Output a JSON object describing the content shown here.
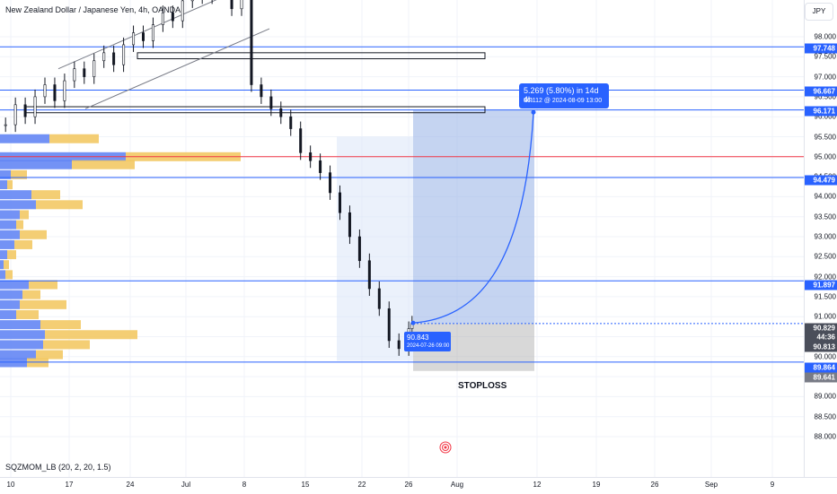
{
  "header": {
    "symbol_title": "New Zealand Dollar / Japanese Yen, 4h, OANDA"
  },
  "currency_button": "JPY",
  "indicator_label": "SQZMOM_LB (20, 2, 20, 1.5)",
  "annotation_stoploss": "STOPLOSS",
  "measure": {
    "line1": "5.269 (5.80%) in 14d 4h",
    "line2": "96.112 @ 2024-08-09  13:00"
  },
  "entry_label": {
    "price": "90.843",
    "date": "2024-07-26 09:00"
  },
  "price_ticks": [
    "98.000",
    "97.500",
    "97.000",
    "96.500",
    "96.000",
    "95.500",
    "95.000",
    "94.500",
    "94.000",
    "93.500",
    "93.000",
    "92.500",
    "92.000",
    "91.500",
    "91.000",
    "90.500",
    "90.000",
    "89.500",
    "89.000",
    "88.500",
    "88.000"
  ],
  "price_tags": {
    "p97748": "97.748",
    "p96667": "96.667",
    "p96171": "96.171",
    "p94479": "94.479",
    "p91897": "91.897",
    "p90829": "90.829",
    "countdown": "44:36",
    "p90813": "90.813",
    "p89864": "89.864",
    "p89641": "89.641"
  },
  "time_ticks": [
    "10",
    "17",
    "24",
    "Jul",
    "8",
    "15",
    "22",
    "26",
    "Aug",
    "12",
    "19",
    "26",
    "Sep",
    "9"
  ],
  "colors": {
    "accent_blue": "#2962ff",
    "red_line": "#f23645",
    "volume_blue": "#5b7ff3",
    "volume_yellow": "#f2c55c",
    "candle": "#131722"
  },
  "chart_data": {
    "type": "candlestick",
    "symbol": "NZDJPY",
    "interval": "4h",
    "x_ticks": [
      "10",
      "17",
      "24",
      "Jul",
      "8",
      "15",
      "22",
      "26",
      "Aug",
      "12",
      "19",
      "26",
      "Sep",
      "9"
    ],
    "y_ticks": [
      98.0,
      97.5,
      97.0,
      96.5,
      96.0,
      95.5,
      95.0,
      94.5,
      94.0,
      93.5,
      93.0,
      92.5,
      92.0,
      91.5,
      91.0,
      90.5,
      90.0,
      89.5,
      89.0,
      88.5,
      88.0
    ],
    "y_range": [
      87.6,
      99.8
    ],
    "close_path": [
      [
        0,
        95.8
      ],
      [
        3,
        96.3
      ],
      [
        6,
        96.0
      ],
      [
        9,
        96.5
      ],
      [
        12,
        96.8
      ],
      [
        15,
        96.4
      ],
      [
        18,
        96.9
      ],
      [
        21,
        97.2
      ],
      [
        24,
        97.0
      ],
      [
        27,
        97.4
      ],
      [
        30,
        97.6
      ],
      [
        33,
        97.3
      ],
      [
        36,
        97.8
      ],
      [
        39,
        98.1
      ],
      [
        42,
        97.9
      ],
      [
        45,
        98.3
      ],
      [
        48,
        98.6
      ],
      [
        51,
        98.4
      ],
      [
        54,
        98.9
      ],
      [
        57,
        99.2
      ],
      [
        60,
        99.0
      ],
      [
        63,
        99.5
      ],
      [
        66,
        99.3
      ],
      [
        69,
        98.7
      ],
      [
        72,
        99.0
      ],
      [
        75,
        96.8
      ],
      [
        78,
        96.5
      ],
      [
        81,
        96.2
      ],
      [
        84,
        96.0
      ],
      [
        87,
        95.7
      ],
      [
        90,
        95.1
      ],
      [
        93,
        94.9
      ],
      [
        96,
        94.6
      ],
      [
        99,
        94.1
      ],
      [
        102,
        93.6
      ],
      [
        105,
        93.0
      ],
      [
        108,
        92.4
      ],
      [
        111,
        91.7
      ],
      [
        114,
        91.2
      ],
      [
        117,
        90.4
      ],
      [
        120,
        90.2
      ],
      [
        123,
        90.7
      ],
      [
        124,
        90.84
      ]
    ],
    "horizontal_lines": [
      {
        "price": 97.748,
        "color": "#2962ff"
      },
      {
        "price": 96.667,
        "color": "#2962ff"
      },
      {
        "price": 96.171,
        "color": "#2962ff"
      },
      {
        "price": 95.0,
        "color": "#f23645"
      },
      {
        "price": 94.479,
        "color": "#2962ff"
      },
      {
        "price": 91.897,
        "color": "#2962ff"
      },
      {
        "price": 89.864,
        "color": "#2962ff"
      }
    ],
    "zones": [
      {
        "from": 97.45,
        "to": 97.6
      },
      {
        "from": 96.1,
        "to": 96.25
      }
    ],
    "projection": {
      "start_price": 90.843,
      "start_date": "2024-07-26 09:00",
      "target_price": 96.112,
      "target_date": "2024-08-09 13:00",
      "change": "5.269 (5.80%)",
      "duration": "14d 4h"
    },
    "volume_profile": [
      {
        "price": 95.45,
        "blue": 55,
        "yellow": 55
      },
      {
        "price": 95.0,
        "blue": 140,
        "yellow": 128
      },
      {
        "price": 94.8,
        "blue": 80,
        "yellow": 70
      },
      {
        "price": 94.55,
        "blue": 12,
        "yellow": 18
      },
      {
        "price": 94.3,
        "blue": 8,
        "yellow": 6
      },
      {
        "price": 94.05,
        "blue": 35,
        "yellow": 32
      },
      {
        "price": 93.8,
        "blue": 40,
        "yellow": 52
      },
      {
        "price": 93.55,
        "blue": 22,
        "yellow": 10
      },
      {
        "price": 93.3,
        "blue": 18,
        "yellow": 8
      },
      {
        "price": 93.05,
        "blue": 22,
        "yellow": 30
      },
      {
        "price": 92.8,
        "blue": 16,
        "yellow": 20
      },
      {
        "price": 92.55,
        "blue": 8,
        "yellow": 10
      },
      {
        "price": 92.3,
        "blue": 4,
        "yellow": 6
      },
      {
        "price": 92.05,
        "blue": 6,
        "yellow": 8
      },
      {
        "price": 91.8,
        "blue": 32,
        "yellow": 32
      },
      {
        "price": 91.55,
        "blue": 25,
        "yellow": 20
      },
      {
        "price": 91.3,
        "blue": 22,
        "yellow": 52
      },
      {
        "price": 91.05,
        "blue": 18,
        "yellow": 25
      },
      {
        "price": 90.8,
        "blue": 45,
        "yellow": 45
      },
      {
        "price": 90.55,
        "blue": 50,
        "yellow": 103
      },
      {
        "price": 90.3,
        "blue": 48,
        "yellow": 52
      },
      {
        "price": 90.05,
        "blue": 40,
        "yellow": 30
      },
      {
        "price": 89.85,
        "blue": 30,
        "yellow": 24
      }
    ]
  }
}
